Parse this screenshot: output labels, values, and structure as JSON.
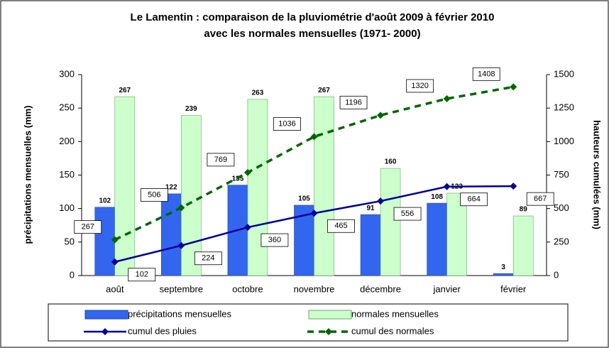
{
  "chart_data": {
    "type": "bar",
    "title": "Le Lamentin : comparaison de la pluviométrie d'août 2009 à février 2010",
    "subtitle": "avec les normales mensuelles (1971- 2000)",
    "ylabel": "précipitations mensuelles (mm)",
    "y2label": "hauteurs cumulées (mm)",
    "categories": [
      "août",
      "septembre",
      "octobre",
      "novembre",
      "décembre",
      "janvier",
      "février"
    ],
    "series": [
      {
        "name": "précipitations mensuelles",
        "type": "bar",
        "color": "#3366ee",
        "values": [
          102,
          122,
          135,
          105,
          91,
          108,
          3
        ]
      },
      {
        "name": "normales mensuelles",
        "type": "bar",
        "color": "#ccffcc",
        "values": [
          267,
          239,
          263,
          267,
          160,
          123,
          89
        ]
      },
      {
        "name": "cumul des pluies",
        "type": "line",
        "axis": "y2",
        "color": "#000099",
        "values": [
          102,
          224,
          360,
          465,
          556,
          664,
          667
        ]
      },
      {
        "name": "cumul des normales",
        "type": "line",
        "axis": "y2",
        "color": "#006600",
        "values": [
          267,
          506,
          769,
          1036,
          1196,
          1320,
          1408
        ]
      }
    ],
    "ylim": [
      0,
      300
    ],
    "yticks": [
      0,
      50,
      100,
      150,
      200,
      250,
      300
    ],
    "y2lim": [
      0,
      1500
    ],
    "y2ticks": [
      0,
      250,
      500,
      750,
      1000,
      1250,
      1500
    ],
    "legend": "bottom"
  }
}
